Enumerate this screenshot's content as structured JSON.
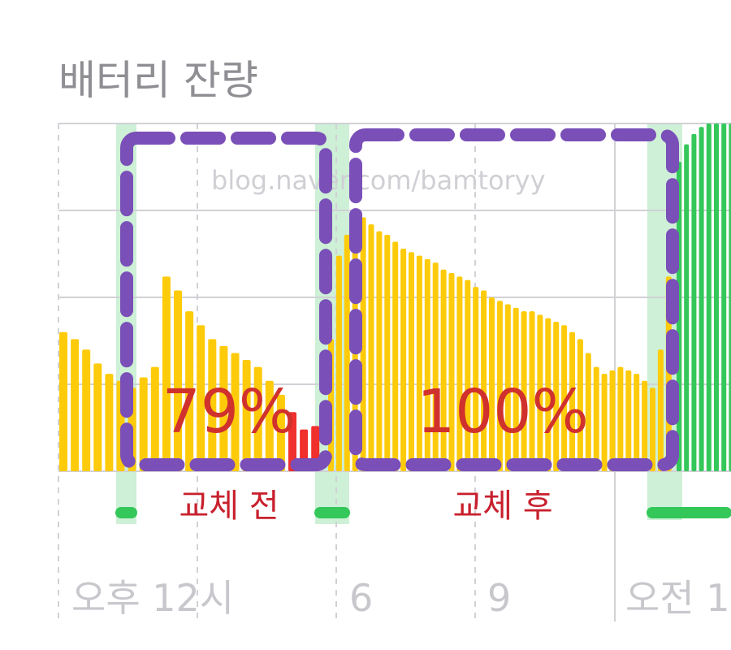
{
  "header": {
    "title": "배터리 잔량"
  },
  "watermark": "blog.naver.com/bamtoryy",
  "colors": {
    "battery": "#fecb0a",
    "low": "#f0302c",
    "charging": "#34c759",
    "charging_zone": "#cdf0d6",
    "grid": "#d1d1d6",
    "highlight_box": "#7a4fb8",
    "annotation": "#d0312d"
  },
  "chart_data": {
    "type": "bar",
    "title": "배터리 잔량",
    "ylim": [
      0,
      100
    ],
    "grid": true,
    "x_tick_labels": [
      "오후 12시",
      "6",
      "9",
      "오전 1"
    ],
    "series": [
      {
        "status": "discharging",
        "values": [
          40,
          38,
          35,
          31,
          28,
          26,
          24,
          27,
          30,
          56,
          52,
          46,
          42,
          38,
          36,
          34,
          32,
          30,
          26,
          22,
          17,
          12,
          13
        ]
      },
      {
        "status": "discharging",
        "values": [
          38,
          62,
          68,
          75,
          73,
          71,
          69,
          68,
          66,
          64,
          63,
          62,
          61,
          60,
          58,
          57,
          56,
          55,
          53,
          52,
          50,
          49,
          48,
          47,
          46,
          46,
          45,
          44,
          43,
          42,
          40,
          38,
          34,
          30,
          28,
          29,
          30,
          29,
          28,
          26,
          24,
          35,
          56
        ]
      },
      {
        "status": "charging",
        "values": [
          89,
          94,
          97,
          99,
          100,
          100,
          100,
          100
        ]
      }
    ],
    "charging_periods_count": 3,
    "annotations": [
      {
        "value_label": "79%",
        "caption": "교체 전"
      },
      {
        "value_label": "100%",
        "caption": "교체 후"
      }
    ]
  }
}
